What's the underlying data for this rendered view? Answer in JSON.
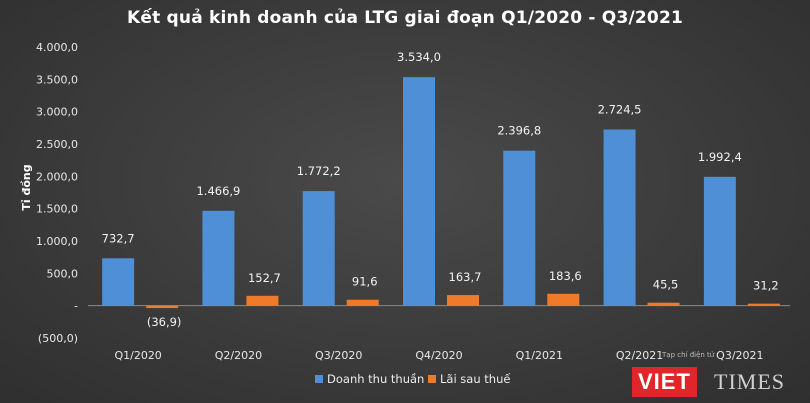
{
  "chart_data": {
    "type": "bar",
    "title": "Kết quả kinh doanh của LTG giai đoạn Q1/2020 - Q3/2021",
    "ylabel": "Tỉ đồng",
    "xlabel": "",
    "ylim": [
      -500,
      4000
    ],
    "yticks": [
      "(500,0)",
      "-",
      "500,0",
      "1.000,0",
      "1.500,0",
      "2.000,0",
      "2.500,0",
      "3.000,0",
      "3.500,0",
      "4.000,0"
    ],
    "ytick_values": [
      -500,
      0,
      500,
      1000,
      1500,
      2000,
      2500,
      3000,
      3500,
      4000
    ],
    "categories": [
      "Q1/2020",
      "Q2/2020",
      "Q3/2020",
      "Q4/2020",
      "Q1/2021",
      "Q2/2021",
      "Q3/2021"
    ],
    "series": [
      {
        "name": "Doanh thu thuần",
        "color": "#4f8fd6",
        "values": [
          732.7,
          1466.9,
          1772.2,
          3534.0,
          2396.8,
          2724.5,
          1992.4
        ],
        "labels": [
          "732,7",
          "1.466,9",
          "1.772,2",
          "3.534,0",
          "2.396,8",
          "2.724,5",
          "1.992,4"
        ]
      },
      {
        "name": "Lãi sau thuế",
        "color": "#ef7a2a",
        "values": [
          -36.9,
          152.7,
          91.6,
          163.7,
          183.6,
          45.5,
          31.2
        ],
        "labels": [
          "(36,9)",
          "152,7",
          "91,6",
          "163,7",
          "183,6",
          "45,5",
          "31,2"
        ]
      }
    ],
    "legend_position": "bottom",
    "grid": false
  },
  "watermark": {
    "brand_left": "VIET",
    "brand_right": "TIMES",
    "small_text": "Tạp chí điện tử"
  }
}
